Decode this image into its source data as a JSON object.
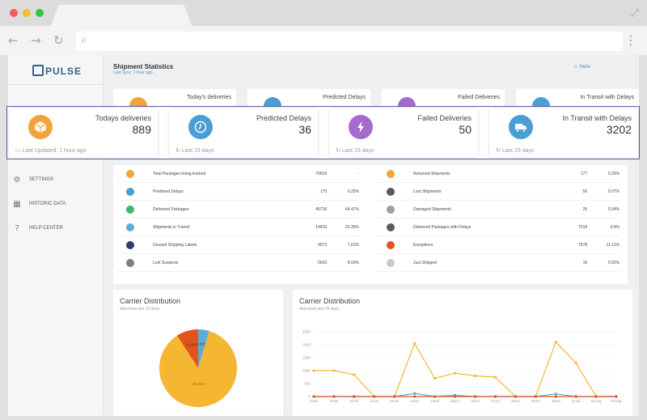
{
  "app": {
    "logo": "PULSE",
    "page_title": "Shipment Statistics",
    "last_sync": "Last Sync: 1 hour ago",
    "hello": "Hello"
  },
  "colors": {
    "orange": "#f0a43a",
    "blue": "#4a9ed6",
    "purple": "#a56ad0",
    "green": "#3dbb63",
    "red": "#e2541c",
    "gray": "#9aa0a6",
    "navy": "#2d3f6e",
    "overlay_border": "#5a5aa0"
  },
  "sidebar": {
    "items": [
      {
        "label": "SETTINGS",
        "icon": "gear-icon"
      },
      {
        "label": "HISTORIC DATA",
        "icon": "calendar-icon"
      },
      {
        "label": "HELP CENTER",
        "icon": "question-icon"
      }
    ]
  },
  "background_cards": [
    {
      "label": "Today's deliveries"
    },
    {
      "label": "Predicted Delays"
    },
    {
      "label": "Failed Deliveries"
    },
    {
      "label": "In Transit with Delays"
    }
  ],
  "overlay_cards": [
    {
      "label": "Todays deliveries",
      "value": "889",
      "footer": "Last Updated: 1 hour ago",
      "icon": "box-icon"
    },
    {
      "label": "Predicted Delays",
      "value": "36",
      "footer": "Last 15 days",
      "icon": "clock-icon"
    },
    {
      "label": "Failed Deliveries",
      "value": "50",
      "footer": "Last 15 days",
      "icon": "lightning-icon"
    },
    {
      "label": "In Transit with Delays",
      "value": "3202",
      "footer": "Last 15 days",
      "icon": "truck-icon"
    }
  ],
  "stats_left": [
    {
      "label": "Total Packages being tracked",
      "value": "70919",
      "pct": "-",
      "icon": "box-icon"
    },
    {
      "label": "Predicted Delays",
      "value": "175",
      "pct": "0.25%",
      "icon": "clock-icon"
    },
    {
      "label": "Delivered Packages",
      "value": "45718",
      "pct": "64.47%",
      "icon": "check-icon"
    },
    {
      "label": "Shipments in Transit",
      "value": "14433",
      "pct": "20.35%",
      "icon": "truck-icon"
    },
    {
      "label": "Unused Shipping Labels",
      "value": "4973",
      "pct": "7.01%",
      "icon": "label-icon"
    },
    {
      "label": "Lost Suspects",
      "value": "5693",
      "pct": "8.03%",
      "icon": "suspect-icon"
    }
  ],
  "stats_right": [
    {
      "label": "Returned Shipments",
      "value": "177",
      "pct": "0.25%",
      "icon": "return-icon"
    },
    {
      "label": "Lost Shipments",
      "value": "50",
      "pct": "0.07%",
      "icon": "lost-icon"
    },
    {
      "label": "Damaged Shipments",
      "value": "26",
      "pct": "0.04%",
      "icon": "damaged-icon"
    },
    {
      "label": "Delivered Packages with Delays",
      "value": "7019",
      "pct": "9.9%",
      "icon": "delay-icon"
    },
    {
      "label": "Exceptions",
      "value": "7878",
      "pct": "11.11%",
      "icon": "exclamation-icon"
    },
    {
      "label": "Just Shipped",
      "value": "16",
      "pct": "0.02%",
      "icon": "shipped-icon"
    }
  ],
  "chart_data": [
    {
      "type": "pie",
      "title": "Carrier Distribution",
      "subtitle": "data from last 15 days",
      "slices": [
        {
          "label": "86.21%",
          "value": 86.21,
          "color": "#f5b731"
        },
        {
          "label": "9.18%",
          "value": 9.18,
          "color": "#e2541c"
        },
        {
          "label": "4.61%",
          "value": 4.61,
          "color": "#5aaed6"
        }
      ]
    },
    {
      "type": "line",
      "title": "Carrier Distribution",
      "subtitle": "data from last 15 days",
      "ylim": [
        0,
        2500
      ],
      "yticks": [
        "2500",
        "2000",
        "1500",
        "1000",
        "500",
        "0"
      ],
      "categories": [
        "18Jul",
        "19Jul",
        "20Jul",
        "21Jul",
        "22Jul",
        "23Jul",
        "24Jul",
        "25Jul",
        "26Jul",
        "27Jul",
        "28Jul",
        "29Jul",
        "30Jul",
        "31Jul",
        "01Aug",
        "02Aug"
      ],
      "series": [
        {
          "color": "#f5b731",
          "values": [
            1000,
            1000,
            850,
            0,
            0,
            2050,
            700,
            900,
            800,
            750,
            0,
            0,
            2100,
            1300,
            0,
            0
          ]
        },
        {
          "color": "#5aaed6",
          "values": [
            0,
            0,
            0,
            0,
            0,
            120,
            0,
            50,
            0,
            0,
            0,
            0,
            100,
            0,
            0,
            0
          ]
        },
        {
          "color": "#e2541c",
          "values": [
            0,
            0,
            0,
            0,
            0,
            0,
            0,
            0,
            0,
            0,
            0,
            0,
            0,
            0,
            0,
            0
          ]
        }
      ]
    }
  ]
}
